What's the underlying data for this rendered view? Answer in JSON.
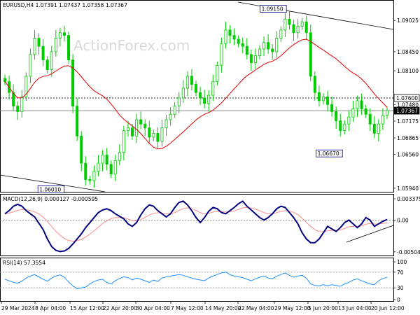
{
  "chart_data": {
    "type": "candlestick",
    "main": {
      "title": "EURUSD,H4  1.07391 1.07437 1.07358 1.07367",
      "watermark": "ActionForex.com",
      "y_ticks": [
        1.09025,
        1.0845,
        1.081,
        1.0748,
        1.07175,
        1.06865,
        1.0656,
        1.0594
      ],
      "ylim": [
        1.059,
        1.0935
      ],
      "price_tags": [
        {
          "text": "1.07600",
          "value": 1.076,
          "style": "plain"
        },
        {
          "text": "1.07367",
          "value": 1.07367,
          "style": "inverted"
        }
      ],
      "annotations": [
        {
          "text": "1.09150",
          "value": 1.0915,
          "at": 0.7
        },
        {
          "text": "1.06670",
          "value": 1.0667,
          "at": 0.845
        },
        {
          "text": "1.06010",
          "value": 1.0601,
          "at": 0.125
        }
      ],
      "levels": [
        1.076,
        1.07367
      ],
      "closes": [
        1.079,
        1.077,
        1.0745,
        1.0735,
        1.0762,
        1.08,
        1.084,
        1.087,
        1.0855,
        1.083,
        1.0812,
        1.0845,
        1.087,
        1.088,
        1.0875,
        1.083,
        1.0745,
        1.069,
        1.064,
        1.061,
        1.0608,
        1.0625,
        1.064,
        1.0655,
        1.0638,
        1.062,
        1.0645,
        1.066,
        1.07,
        1.0705,
        1.069,
        1.072,
        1.0712,
        1.0705,
        1.0688,
        1.0695,
        1.068,
        1.0705,
        1.072,
        1.073,
        1.0745,
        1.076,
        1.0778,
        1.08,
        1.0785,
        1.077,
        1.076,
        1.075,
        1.0765,
        1.079,
        1.082,
        1.086,
        1.0885,
        1.0875,
        1.0868,
        1.086,
        1.0855,
        1.084,
        1.0825,
        1.0838,
        1.085,
        1.0862,
        1.085,
        1.0845,
        1.087,
        1.0885,
        1.0905,
        1.0895,
        1.088,
        1.0892,
        1.09,
        1.088,
        1.08,
        1.077,
        1.0755,
        1.0762,
        1.0748,
        1.0735,
        1.0718,
        1.07,
        1.0712,
        1.0725,
        1.074,
        1.0755,
        1.074,
        1.073,
        1.0712,
        1.0695,
        1.0712,
        1.0728,
        1.0737
      ],
      "ma_period": 20
    },
    "macd": {
      "title": "MACD(12,26,9) 0.000127 -0.000595",
      "y_ticks": [
        "0.003375",
        "0.00",
        "-0.00504"
      ],
      "ylim": [
        -0.0054,
        0.0036
      ],
      "values": [
        0.001,
        0.0015,
        0.0022,
        0.0025,
        0.0022,
        0.0015,
        0.001,
        0.0005,
        -0.0005,
        -0.0015,
        -0.003,
        -0.0042,
        -0.0048,
        -0.005,
        -0.0049,
        -0.0045,
        -0.0038,
        -0.003,
        -0.0022,
        -0.0012,
        -0.0004,
        0.0004,
        0.0012,
        0.0016,
        0.0018,
        0.0015,
        0.001,
        0.0006,
        0.0002,
        -0.0006,
        -0.001,
        -0.0004,
        0.0008,
        0.0018,
        0.0024,
        0.0022,
        0.0015,
        0.001,
        0.0005,
        0.001,
        0.002,
        0.0028,
        0.003,
        0.0024,
        0.0015,
        0.0004,
        -0.0004,
        0.0004,
        0.0014,
        0.002,
        0.0018,
        0.0012,
        0.001,
        0.0015,
        0.002,
        0.0026,
        0.003,
        0.0022,
        0.0016,
        0.001,
        0.0004,
        0.0,
        0.0004,
        0.001,
        0.0018,
        0.0022,
        0.002,
        0.0012,
        0.0004,
        -0.0006,
        -0.002,
        -0.003,
        -0.0036,
        -0.0036,
        -0.003,
        -0.002,
        -0.001,
        -0.0014,
        -0.0018,
        -0.0012,
        -0.0004,
        0.0,
        -0.0006,
        -0.0012,
        -0.0006,
        0.0004,
        0.0,
        -0.001,
        -0.0006,
        -0.0002,
        0.0001
      ],
      "signal_period": 9
    },
    "rsi": {
      "title": "RSI(14) 57.3554",
      "y_ticks": [
        "100",
        "70",
        "30",
        "0"
      ],
      "ylim": [
        0,
        100
      ],
      "levels": [
        70,
        30
      ],
      "values": [
        52,
        48,
        44,
        42,
        47,
        55,
        60,
        64,
        58,
        52,
        47,
        55,
        60,
        63,
        57,
        45,
        35,
        28,
        30,
        32,
        40,
        46,
        50,
        52,
        44,
        40,
        48,
        54,
        58,
        56,
        50,
        55,
        52,
        48,
        44,
        50,
        46,
        55,
        58,
        60,
        62,
        64,
        62,
        58,
        55,
        52,
        50,
        48,
        55,
        60,
        64,
        68,
        70,
        64,
        60,
        58,
        56,
        52,
        48,
        53,
        57,
        60,
        55,
        53,
        60,
        64,
        68,
        62,
        57,
        60,
        62,
        55,
        40,
        36,
        35,
        38,
        35,
        38,
        36,
        34,
        40,
        44,
        50,
        53,
        48,
        44,
        40,
        38,
        48,
        54,
        57
      ],
      "x_labels": [
        "29 Mar 2024",
        "8 Apr 04:00",
        "15 Apr 12:00",
        "22 Apr 20:00",
        "30 Apr 04:00",
        "7 May 12:00",
        "14 May 20:00",
        "22 May 04:00",
        "29 May 12:00",
        "5 Jun 20:00",
        "13 Jun 04:00",
        "20 Jun 12:00"
      ]
    },
    "colors": {
      "candle": "#00cc00",
      "ma": "#e00000",
      "macd_line": "#000080",
      "signal_line": "#ff8c8c",
      "rsi_line": "#1e90ff",
      "trendline": "#000000"
    }
  }
}
